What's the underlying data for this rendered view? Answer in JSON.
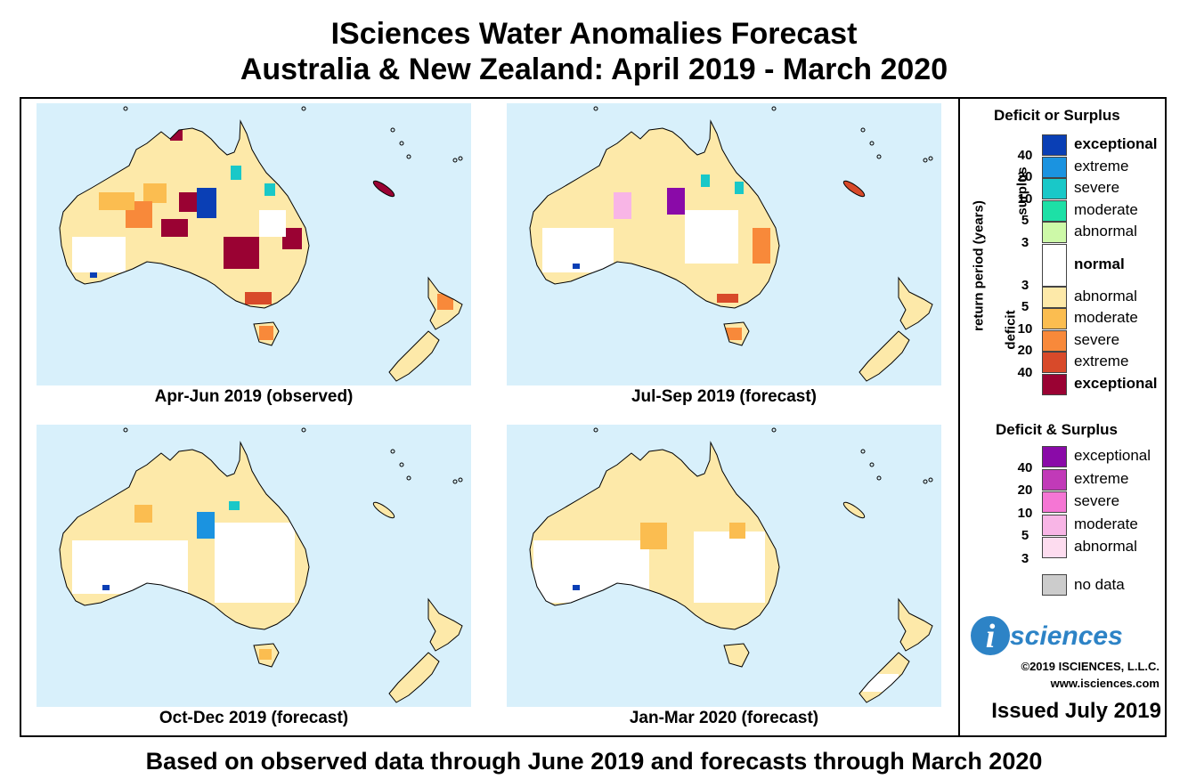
{
  "title": {
    "line1": "ISciences Water Anomalies Forecast",
    "line2": "Australia & New Zealand: April 2019 - March 2020"
  },
  "maps": [
    {
      "caption": "Apr-Jun 2019 (observed)",
      "base": "#fde9a9"
    },
    {
      "caption": "Jul-Sep 2019 (forecast)",
      "base": "#fde9a9"
    },
    {
      "caption": "Oct-Dec 2019 (forecast)",
      "base": "#fde9a9"
    },
    {
      "caption": "Jan-Mar 2020 (forecast)",
      "base": "#fde9a9"
    }
  ],
  "legend": {
    "title_ds": "Deficit or Surplus",
    "axis_label": "return period (years)",
    "surplus_label": "surplus",
    "deficit_label": "deficit",
    "surplus_items": [
      {
        "label": "exceptional",
        "color": "#0a3fb5",
        "bold": true
      },
      {
        "label": "extreme",
        "color": "#1b93e0"
      },
      {
        "label": "severe",
        "color": "#19c8c8"
      },
      {
        "label": "moderate",
        "color": "#1de0a6"
      },
      {
        "label": "abnormal",
        "color": "#cdf9a8"
      }
    ],
    "normal": {
      "label": "normal",
      "color": "#ffffff"
    },
    "deficit_items": [
      {
        "label": "abnormal",
        "color": "#fde9a9"
      },
      {
        "label": "moderate",
        "color": "#fbbd50"
      },
      {
        "label": "severe",
        "color": "#f8893a"
      },
      {
        "label": "extreme",
        "color": "#d84a2a"
      },
      {
        "label": "exceptional",
        "color": "#9a0233",
        "bold": true
      }
    ],
    "surplus_ticks": [
      "40",
      "20",
      "10",
      "5",
      "3"
    ],
    "deficit_ticks": [
      "3",
      "5",
      "10",
      "20",
      "40"
    ],
    "title_both": "Deficit & Surplus",
    "both_items": [
      {
        "label": "exceptional",
        "color": "#8a0aa8"
      },
      {
        "label": "extreme",
        "color": "#c13ab8"
      },
      {
        "label": "severe",
        "color": "#f576d4"
      },
      {
        "label": "moderate",
        "color": "#f8b5e6"
      },
      {
        "label": "abnormal",
        "color": "#fddcef"
      }
    ],
    "both_ticks": [
      "40",
      "20",
      "10",
      "5",
      "3"
    ],
    "nodata": {
      "label": "no data",
      "color": "#cccccc"
    }
  },
  "logo": {
    "i": "i",
    "text": "sciences"
  },
  "copyright": "©2019 ISCIENCES, L.L.C.",
  "website": "www.isciences.com",
  "issued": "Issued July 2019",
  "footer": "Based on observed data through June 2019 and forecasts through March 2020"
}
